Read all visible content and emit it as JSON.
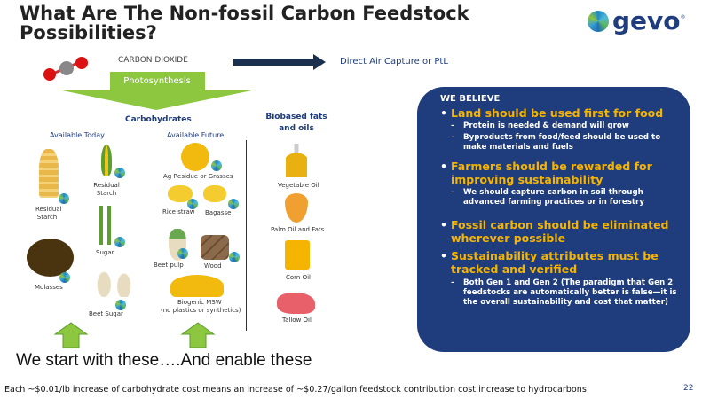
{
  "title": "What Are The Non-fossil Carbon Feedstock Possibilities?",
  "logo": {
    "text": "gevo",
    "mark": "®"
  },
  "co2_label": "CARBON DIOXIDE",
  "dac_label": "Direct Air Capture or PtL",
  "photosynthesis": "Photosynthesis",
  "carbohydrates": {
    "heading": "Carbohydrates",
    "today": "Available Today",
    "future": "Available Future",
    "today_items": [
      "Residual Starch",
      "Residual Starch",
      "Sugar",
      "Molasses",
      "Beet Sugar"
    ],
    "future_items": [
      "Ag Residue or Grasses",
      "Rice straw",
      "Bagasse",
      "Beet pulp",
      "Wood",
      "Biogenic MSW",
      "(no plastics or synthetics)"
    ]
  },
  "fats": {
    "heading": "Biobased fats and oils",
    "items": [
      "Vegetable Oil",
      "Palm Oil and Fats",
      "Corn Oil",
      "Tallow Oil"
    ]
  },
  "enable_text": "We start with these….And enable these",
  "beliefs": {
    "heading": "WE BELIEVE",
    "points": [
      {
        "text": "Land should be used first for food",
        "subs": [
          "Protein is needed & demand will grow",
          "Byproducts from food/feed should be used to make materials and fuels"
        ]
      },
      {
        "text": "Farmers should be rewarded for improving sustainability",
        "subs": [
          "We should capture carbon in soil through advanced farming practices or in forestry"
        ]
      },
      {
        "text": "Fossil carbon should be eliminated wherever possible",
        "subs": []
      },
      {
        "text": "Sustainability attributes must be tracked and verified",
        "subs": [
          "Both Gen 1 and Gen 2  (The paradigm that Gen 2 feedstocks are automatically better is false—it is the overall sustainability and cost that matter)"
        ]
      }
    ]
  },
  "footer": "Each ~$0.01/lb increase of carbohydrate cost means an increase of ~$0.27/gallon feedstock contribution cost increase to hydrocarbons",
  "page_number": "22",
  "colors": {
    "navy": "#1f3c7c",
    "gold": "#f5b400",
    "green": "#8dc63f",
    "arrow": "#1b2f4f"
  }
}
